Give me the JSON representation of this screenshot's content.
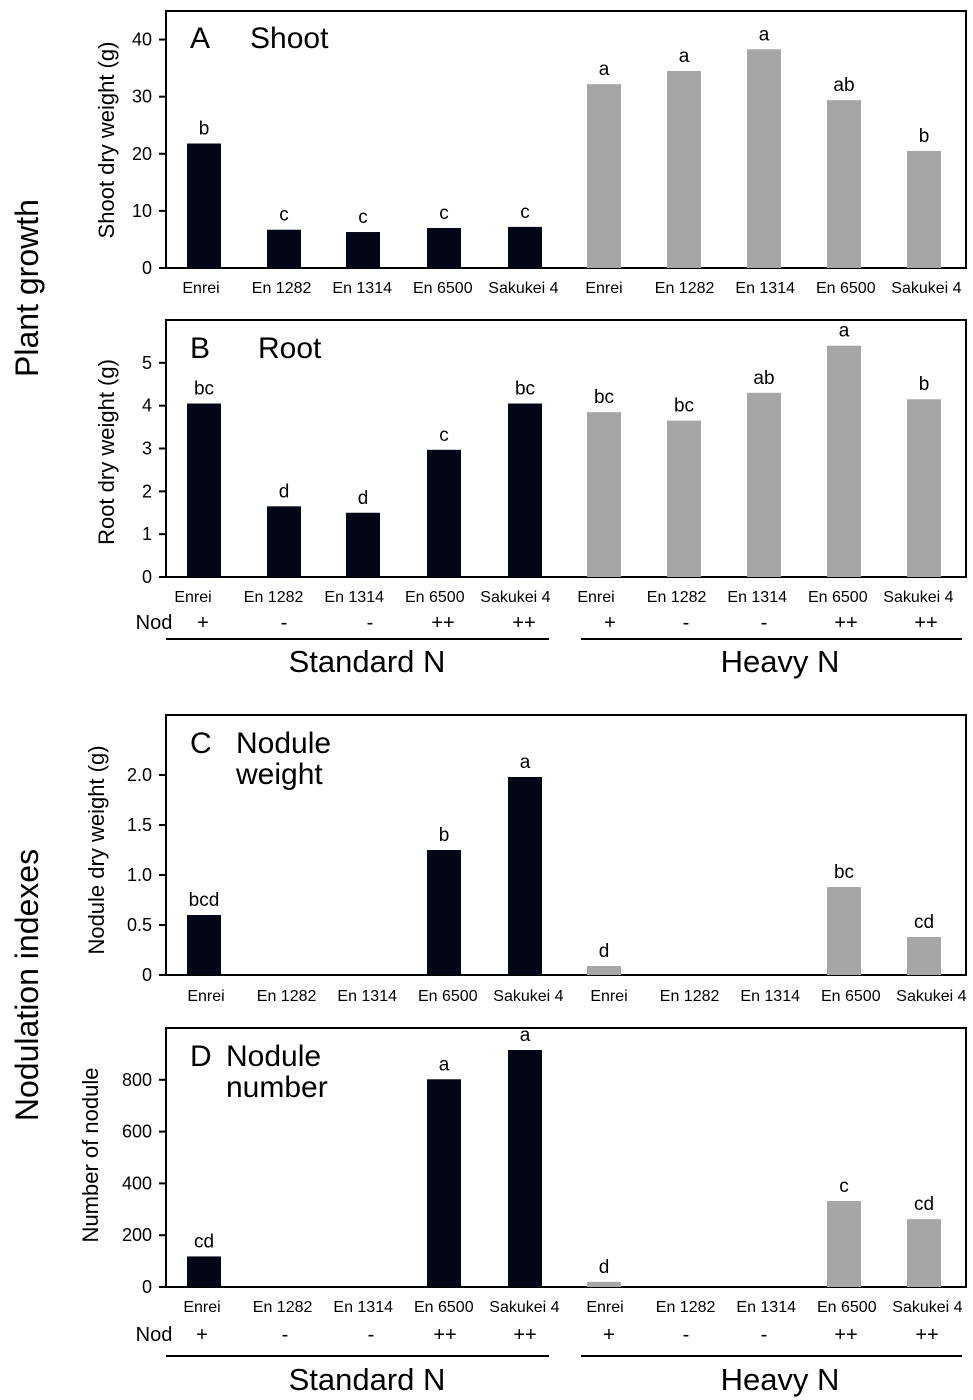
{
  "figure": {
    "side_labels": [
      "Plant growth",
      "Nodulation indexes"
    ],
    "categories": [
      "Enrei",
      "En 1282",
      "En 1314",
      "En 6500",
      "Sakukei 4",
      "Enrei",
      "En 1282",
      "En 1314",
      "En 6500",
      "Sakukei 4"
    ],
    "nod_label": "Nod",
    "nod_values": [
      "+",
      "-",
      "-",
      "++",
      "++",
      "+",
      "-",
      "-",
      "++",
      "++"
    ],
    "groups": [
      "Standard N",
      "Heavy N"
    ]
  },
  "colors": {
    "standard": "#020617",
    "heavy": "#a6a6a6"
  },
  "chart_data": [
    {
      "type": "bar",
      "letter": "A",
      "title": "Shoot",
      "ylabel": "Shoot dry weight (g)",
      "ylim": [
        0,
        45
      ],
      "yticks": [
        0,
        10,
        20,
        30,
        40
      ],
      "categories": [
        "Enrei",
        "En 1282",
        "En 1314",
        "En 6500",
        "Sakukei 4",
        "Enrei",
        "En 1282",
        "En 1314",
        "En 6500",
        "Sakukei 4"
      ],
      "series": [
        {
          "values": [
            21.8,
            6.7,
            6.3,
            7.0,
            7.2,
            null,
            null,
            null,
            null,
            null
          ]
        },
        {
          "values": [
            null,
            null,
            null,
            null,
            null,
            32.2,
            34.5,
            38.3,
            29.4,
            20.5
          ]
        }
      ],
      "significance": [
        "b",
        "c",
        "c",
        "c",
        "c",
        "a",
        "a",
        "a",
        "ab",
        "b"
      ]
    },
    {
      "type": "bar",
      "letter": "B",
      "title": "Root",
      "ylabel": "Root dry weight (g)",
      "ylim": [
        0,
        6
      ],
      "yticks": [
        0,
        1,
        2,
        3,
        4,
        5
      ],
      "categories": [
        "Enrei",
        "En 1282",
        "En 1314",
        "En 6500",
        "Sakukei 4",
        "Enrei",
        "En 1282",
        "En 1314",
        "En 6500",
        "Sakukei 4"
      ],
      "series": [
        {
          "values": [
            4.05,
            1.65,
            1.5,
            2.97,
            4.05,
            null,
            null,
            null,
            null,
            null
          ]
        },
        {
          "values": [
            null,
            null,
            null,
            null,
            null,
            3.85,
            3.65,
            4.3,
            5.4,
            4.15
          ]
        }
      ],
      "significance": [
        "bc",
        "d",
        "d",
        "c",
        "bc",
        "bc",
        "bc",
        "ab",
        "a",
        "b"
      ]
    },
    {
      "type": "bar",
      "letter": "C",
      "title": "Nodule\nweight",
      "ylabel": "Nodule dry weight (g)",
      "ylim": [
        0,
        2.6
      ],
      "yticks": [
        0,
        0.5,
        1.0,
        1.5,
        2.0
      ],
      "ytick_labels": [
        "0",
        "0.5",
        "1.0",
        "1.5",
        "2.0"
      ],
      "categories": [
        "Enrei",
        "En 1282",
        "En 1314",
        "En 6500",
        "Sakukei 4",
        "Enrei",
        "En 1282",
        "En 1314",
        "En 6500",
        "Sakukei 4"
      ],
      "series": [
        {
          "values": [
            0.6,
            0,
            0,
            1.25,
            1.98,
            null,
            null,
            null,
            null,
            null
          ]
        },
        {
          "values": [
            null,
            null,
            null,
            null,
            null,
            0.09,
            0,
            0,
            0.88,
            0.38
          ]
        }
      ],
      "significance": [
        "bcd",
        "",
        "",
        "b",
        "a",
        "d",
        "",
        "",
        "bc",
        "cd"
      ]
    },
    {
      "type": "bar",
      "letter": "D",
      "title": "Nodule\nnumber",
      "ylabel": "Number of nodule",
      "ylim": [
        0,
        1000
      ],
      "yticks": [
        0,
        200,
        400,
        600,
        800
      ],
      "categories": [
        "Enrei",
        "En 1282",
        "En 1314",
        "En 6500",
        "Sakukei 4",
        "Enrei",
        "En 1282",
        "En 1314",
        "En 6500",
        "Sakukei 4"
      ],
      "series": [
        {
          "values": [
            118,
            0,
            0,
            802,
            915,
            null,
            null,
            null,
            null,
            null
          ]
        },
        {
          "values": [
            null,
            null,
            null,
            null,
            null,
            20,
            0,
            0,
            332,
            262
          ]
        }
      ],
      "significance": [
        "cd",
        "",
        "",
        "a",
        "a",
        "d",
        "",
        "",
        "c",
        "cd"
      ]
    }
  ]
}
